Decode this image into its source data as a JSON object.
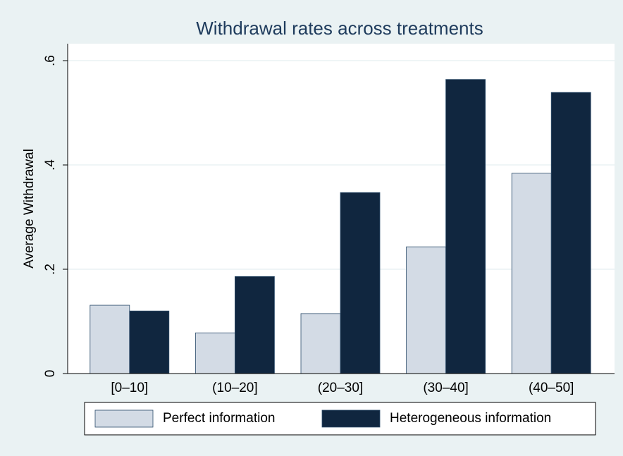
{
  "chart_data": {
    "type": "bar",
    "title": "Withdrawal rates across treatments",
    "y_label": "Average Withdrawal",
    "categories": [
      "[0–10]",
      "(10–20]",
      "(20–30]",
      "(30–40]",
      "(40–50]"
    ],
    "series": [
      {
        "name": "Perfect information",
        "color": "#d3dbe5",
        "values": [
          0.131,
          0.078,
          0.115,
          0.243,
          0.384
        ]
      },
      {
        "name": "Heterogeneous information",
        "color": "#10263f",
        "values": [
          0.12,
          0.186,
          0.347,
          0.564,
          0.539
        ]
      }
    ],
    "ylim": [
      0,
      0.6325
    ],
    "yticks": [
      0,
      {
        "value": 0.2,
        "label": ".2"
      },
      {
        "value": 0.4,
        "label": ".4"
      },
      {
        "value": 0.6,
        "label": ".6"
      }
    ],
    "grid": true,
    "legend": "bottom"
  }
}
